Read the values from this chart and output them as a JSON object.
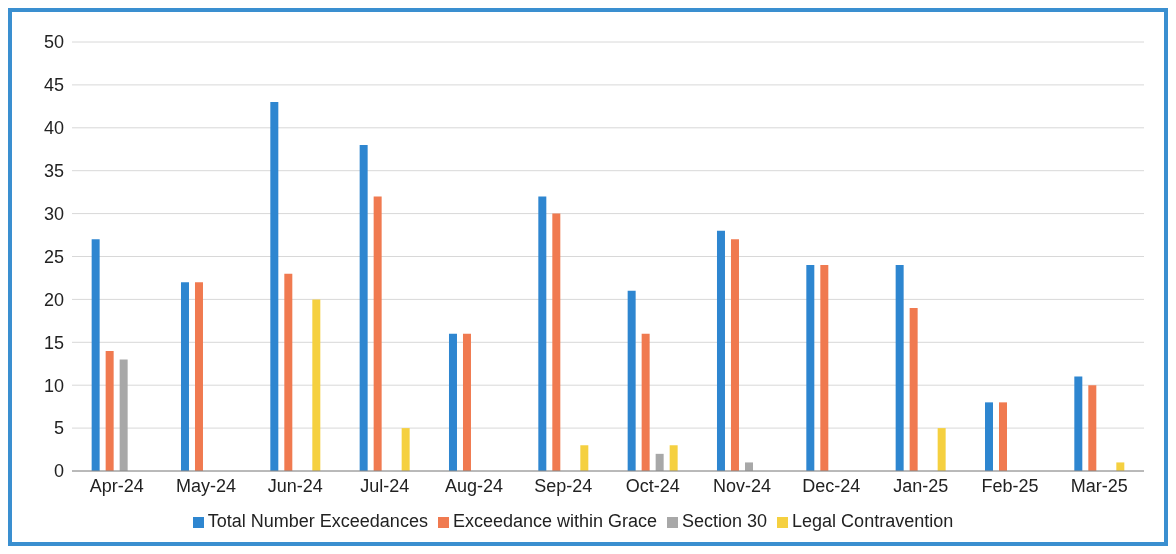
{
  "chart_data": {
    "type": "bar",
    "categories": [
      "Apr-24",
      "May-24",
      "Jun-24",
      "Jul-24",
      "Aug-24",
      "Sep-24",
      "Oct-24",
      "Nov-24",
      "Dec-24",
      "Jan-25",
      "Feb-25",
      "Mar-25"
    ],
    "series": [
      {
        "name": "Total Number Exceedances",
        "color": "#2e86d0",
        "values": [
          27,
          22,
          43,
          38,
          16,
          32,
          21,
          28,
          24,
          24,
          8,
          11
        ]
      },
      {
        "name": "Exceedance within Grace",
        "color": "#f07a50",
        "values": [
          14,
          22,
          23,
          32,
          16,
          30,
          16,
          27,
          24,
          19,
          8,
          10
        ]
      },
      {
        "name": "Section 30",
        "color": "#a8a8a8",
        "values": [
          13,
          0,
          0,
          0,
          0,
          0,
          2,
          1,
          0,
          0,
          0,
          0
        ]
      },
      {
        "name": "Legal Contravention",
        "color": "#f5d040",
        "values": [
          0,
          0,
          20,
          5,
          0,
          3,
          3,
          0,
          0,
          5,
          0,
          1
        ]
      }
    ],
    "ylim": [
      0,
      50
    ],
    "yticks": [
      0,
      5,
      10,
      15,
      20,
      25,
      30,
      35,
      40,
      45,
      50
    ],
    "grid": "y",
    "legend": "bottom"
  }
}
